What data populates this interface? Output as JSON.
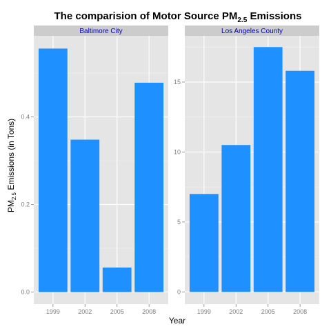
{
  "chart_data": {
    "type": "bar",
    "title": "The comparision of Motor Source PM",
    "title_sub": "2.5",
    "title_suffix": " Emissions",
    "xlabel": "Year",
    "ylabel_prefix": "PM",
    "ylabel_sub": "2.5",
    "ylabel_suffix": " Emissions (in Tons)",
    "bar_color": "#1E90FF",
    "panel_bg": "#E5E5E5",
    "strip_bg": "#CCCCCC",
    "strip_text_color": "#0000CC",
    "grid": true,
    "facets": [
      {
        "name": "Baltimore City",
        "categories": [
          "1999",
          "2002",
          "2005",
          "2008"
        ],
        "values": [
          0.556,
          0.348,
          0.056,
          0.478
        ],
        "ylim": [
          -0.0275,
          0.585
        ],
        "yticks": [
          0.0,
          0.2,
          0.4
        ],
        "ytick_labels": [
          "0.0",
          "0.2",
          "0.4"
        ]
      },
      {
        "name": "Los Angeles County",
        "categories": [
          "1999",
          "2002",
          "2005",
          "2008"
        ],
        "values": [
          7.0,
          10.5,
          17.5,
          15.8
        ],
        "ylim": [
          -0.87,
          18.3
        ],
        "yticks": [
          0,
          5,
          10,
          15
        ],
        "ytick_labels": [
          "0",
          "5",
          "10",
          "15"
        ]
      }
    ]
  }
}
